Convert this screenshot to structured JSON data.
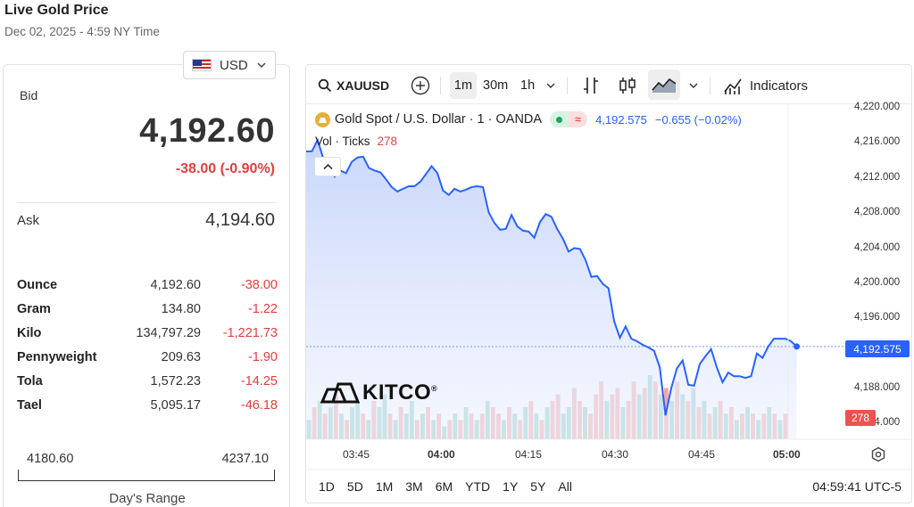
{
  "header": {
    "title": "Live Gold Price",
    "datetime": "Dec 02, 2025 - 4:59 NY Time"
  },
  "currency": {
    "selected": "USD",
    "flag_icon": "us-flag-icon",
    "chevron_icon": "chevron-down-icon"
  },
  "quote": {
    "bid_label": "Bid",
    "bid_value": "4,192.60",
    "change": "-38.00 (-0.90%)",
    "ask_label": "Ask",
    "ask_value": "4,194.60",
    "negative_color": "#e03e3e"
  },
  "units": [
    {
      "name": "Ounce",
      "price": "4,192.60",
      "change": "-38.00"
    },
    {
      "name": "Gram",
      "price": "134.80",
      "change": "-1.22"
    },
    {
      "name": "Kilo",
      "price": "134,797.29",
      "change": "-1,221.73"
    },
    {
      "name": "Pennyweight",
      "price": "209.63",
      "change": "-1.90"
    },
    {
      "name": "Tola",
      "price": "1,572.23",
      "change": "-14.25"
    },
    {
      "name": "Tael",
      "price": "5,095.17",
      "change": "-46.18"
    }
  ],
  "days_range": {
    "low": "4180.60",
    "high": "4237.10",
    "label": "Day's Range"
  },
  "toolbar": {
    "symbol": "XAUUSD",
    "intervals": [
      "1m",
      "30m",
      "1h"
    ],
    "selected_interval": "1m",
    "indicators_label": "Indicators",
    "icons": [
      "search-icon",
      "add-symbol-icon",
      "chevron-down-icon",
      "bar-chart-icon",
      "candlestick-icon",
      "area-chart-icon",
      "chevron-down-icon",
      "indicators-icon"
    ]
  },
  "legend": {
    "symbol_name": "Gold Spot / U.S. Dollar · 1 · OANDA",
    "last": "4,192.575",
    "change": "−0.655 (−0.02%)",
    "volume_label": "Vol · Ticks",
    "volume_value": "278",
    "accent_color": "#2962ff"
  },
  "price_axis": [
    "4,220.000",
    "4,216.000",
    "4,212.000",
    "4,208.000",
    "4,204.000",
    "4,200.000",
    "4,196.000",
    "4,188.000",
    "4,184.000"
  ],
  "price_tag": "4,192.575",
  "volume_tag": "278",
  "time_axis": [
    "03:45",
    "04:00",
    "04:15",
    "04:30",
    "04:45",
    "05:00"
  ],
  "range_buttons": [
    "1D",
    "5D",
    "1M",
    "3M",
    "6M",
    "YTD",
    "1Y",
    "5Y",
    "All"
  ],
  "clock": "04:59:41 UTC-5",
  "logo": "KITCO",
  "chart_data": {
    "type": "area",
    "title": "Gold Spot / U.S. Dollar · 1 · OANDA",
    "ylim": [
      4180,
      4221
    ],
    "x_range": [
      "03:34",
      "05:01"
    ],
    "xlabel": "",
    "ylabel": "",
    "grid": false,
    "series": [
      {
        "name": "Gold Spot / U.S. Dollar",
        "color": "#2962ff",
        "points": [
          [
            "03:34",
            4215.0
          ],
          [
            "03:35",
            4215.0
          ],
          [
            "03:36",
            4216.3
          ],
          [
            "03:37",
            4214.2
          ],
          [
            "03:38",
            4213.3
          ],
          [
            "03:39",
            4212.1
          ],
          [
            "03:40",
            4212.8
          ],
          [
            "03:41",
            4212.5
          ],
          [
            "03:42",
            4213.8
          ],
          [
            "03:43",
            4214.3
          ],
          [
            "03:44",
            4214.4
          ],
          [
            "03:45",
            4213.1
          ],
          [
            "03:46",
            4212.8
          ],
          [
            "03:47",
            4212.6
          ],
          [
            "03:48",
            4211.8
          ],
          [
            "03:49",
            4210.9
          ],
          [
            "03:50",
            4210.4
          ],
          [
            "03:51",
            4210.7
          ],
          [
            "03:52",
            4211.0
          ],
          [
            "03:53",
            4211.0
          ],
          [
            "03:54",
            4211.5
          ],
          [
            "03:55",
            4212.4
          ],
          [
            "03:56",
            4213.3
          ],
          [
            "03:57",
            4212.5
          ],
          [
            "03:58",
            4210.5
          ],
          [
            "03:59",
            4210.0
          ],
          [
            "04:00",
            4210.7
          ],
          [
            "04:01",
            4210.4
          ],
          [
            "04:02",
            4210.6
          ],
          [
            "04:03",
            4210.9
          ],
          [
            "04:04",
            4211.0
          ],
          [
            "04:05",
            4210.9
          ],
          [
            "04:06",
            4208.0
          ],
          [
            "04:07",
            4206.8
          ],
          [
            "04:08",
            4206.0
          ],
          [
            "04:09",
            4206.1
          ],
          [
            "04:10",
            4207.7
          ],
          [
            "04:11",
            4206.4
          ],
          [
            "04:12",
            4205.9
          ],
          [
            "04:13",
            4205.8
          ],
          [
            "04:14",
            4205.1
          ],
          [
            "04:15",
            4206.9
          ],
          [
            "04:16",
            4207.8
          ],
          [
            "04:17",
            4207.5
          ],
          [
            "04:18",
            4206.1
          ],
          [
            "04:19",
            4205.0
          ],
          [
            "04:20",
            4203.5
          ],
          [
            "04:21",
            4203.9
          ],
          [
            "04:22",
            4203.8
          ],
          [
            "04:23",
            4202.5
          ],
          [
            "04:24",
            4200.6
          ],
          [
            "04:25",
            4200.7
          ],
          [
            "04:26",
            4199.8
          ],
          [
            "04:27",
            4199.3
          ],
          [
            "04:28",
            4195.5
          ],
          [
            "04:29",
            4193.6
          ],
          [
            "04:30",
            4194.9
          ],
          [
            "04:31",
            4193.5
          ],
          [
            "04:32",
            4193.2
          ],
          [
            "04:33",
            4192.8
          ],
          [
            "04:34",
            4192.5
          ],
          [
            "04:35",
            4192.1
          ],
          [
            "04:36",
            4190.2
          ],
          [
            "04:37",
            4184.7
          ],
          [
            "04:38",
            4187.8
          ],
          [
            "04:39",
            4190.1
          ],
          [
            "04:40",
            4191.0
          ],
          [
            "04:41",
            4188.2
          ],
          [
            "04:42",
            4188.1
          ],
          [
            "04:43",
            4190.6
          ],
          [
            "04:44",
            4191.5
          ],
          [
            "04:45",
            4192.3
          ],
          [
            "04:46",
            4190.2
          ],
          [
            "04:47",
            4188.5
          ],
          [
            "04:48",
            4189.6
          ],
          [
            "04:49",
            4189.2
          ],
          [
            "04:50",
            4189.2
          ],
          [
            "04:51",
            4189.0
          ],
          [
            "04:52",
            4189.2
          ],
          [
            "04:53",
            4191.8
          ],
          [
            "04:54",
            4191.3
          ],
          [
            "04:55",
            4192.6
          ],
          [
            "04:56",
            4193.5
          ],
          [
            "04:57",
            4193.5
          ],
          [
            "04:58",
            4193.5
          ],
          [
            "04:59",
            4193.2
          ],
          [
            "05:00",
            4192.6
          ]
        ]
      }
    ],
    "volume": {
      "name": "Vol · Ticks",
      "up_color": "#8fcfc4",
      "down_color": "#f1a8a6",
      "bars": [
        [
          3,
          1
        ],
        [
          5,
          0
        ],
        [
          6,
          1
        ],
        [
          4,
          0
        ],
        [
          5,
          1
        ],
        [
          7,
          0
        ],
        [
          4,
          1
        ],
        [
          3,
          0
        ],
        [
          5,
          1
        ],
        [
          6,
          1
        ],
        [
          4,
          0
        ],
        [
          3,
          1
        ],
        [
          6,
          0
        ],
        [
          5,
          1
        ],
        [
          7,
          1
        ],
        [
          4,
          0
        ],
        [
          3,
          1
        ],
        [
          5,
          0
        ],
        [
          4,
          1
        ],
        [
          6,
          1
        ],
        [
          3,
          0
        ],
        [
          4,
          1
        ],
        [
          5,
          0
        ],
        [
          3,
          1
        ],
        [
          4,
          0
        ],
        [
          2,
          1
        ],
        [
          3,
          0
        ],
        [
          4,
          1
        ],
        [
          3,
          0
        ],
        [
          5,
          1
        ],
        [
          4,
          0
        ],
        [
          3,
          1
        ],
        [
          4,
          0
        ],
        [
          6,
          1
        ],
        [
          5,
          0
        ],
        [
          4,
          0
        ],
        [
          3,
          1
        ],
        [
          5,
          0
        ],
        [
          4,
          1
        ],
        [
          3,
          0
        ],
        [
          5,
          1
        ],
        [
          6,
          0
        ],
        [
          4,
          1
        ],
        [
          3,
          0
        ],
        [
          5,
          1
        ],
        [
          6,
          0
        ],
        [
          7,
          0
        ],
        [
          4,
          1
        ],
        [
          5,
          1
        ],
        [
          8,
          0
        ],
        [
          6,
          0
        ],
        [
          5,
          1
        ],
        [
          4,
          0
        ],
        [
          7,
          0
        ],
        [
          9,
          0
        ],
        [
          6,
          1
        ],
        [
          7,
          0
        ],
        [
          8,
          0
        ],
        [
          5,
          1
        ],
        [
          6,
          0
        ],
        [
          9,
          0
        ],
        [
          7,
          1
        ],
        [
          8,
          0
        ],
        [
          10,
          1
        ],
        [
          9,
          0
        ],
        [
          7,
          1
        ],
        [
          8,
          0
        ],
        [
          6,
          1
        ],
        [
          9,
          0
        ],
        [
          7,
          1
        ],
        [
          6,
          0
        ],
        [
          8,
          1
        ],
        [
          5,
          0
        ],
        [
          6,
          1
        ],
        [
          4,
          0
        ],
        [
          5,
          1
        ],
        [
          6,
          0
        ],
        [
          4,
          1
        ],
        [
          5,
          0
        ],
        [
          3,
          1
        ],
        [
          4,
          0
        ],
        [
          5,
          1
        ],
        [
          4,
          0
        ],
        [
          3,
          1
        ],
        [
          4,
          0
        ],
        [
          5,
          1
        ],
        [
          4,
          0
        ],
        [
          3,
          1
        ],
        [
          4,
          0
        ]
      ]
    }
  }
}
